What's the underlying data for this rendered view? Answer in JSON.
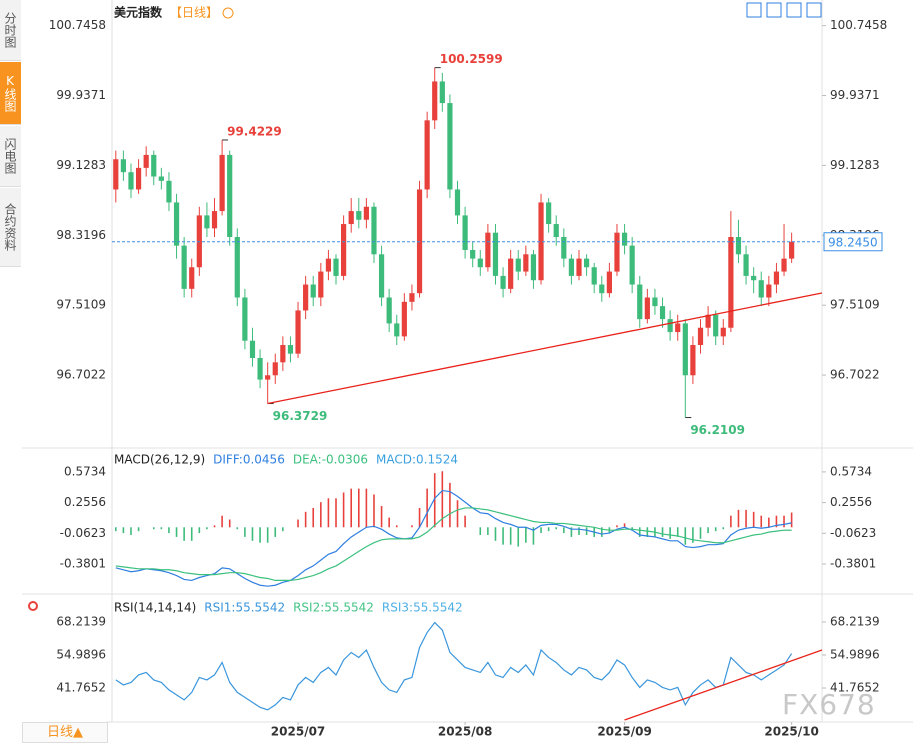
{
  "sidebar": {
    "tabs": [
      "分时图",
      "K线图",
      "闪电图",
      "合约资料"
    ],
    "period_button": "日线▲"
  },
  "watermark": "FX678",
  "chart_data": [
    {
      "type": "candlestick",
      "title": "美元指数",
      "period": "【日线】",
      "up_color": "#e8413c",
      "down_color": "#3dbb7a",
      "xlim": [
        -0.5,
        93
      ],
      "ylim": [
        95.87,
        100.95
      ],
      "xticks": [
        {
          "value": 24,
          "label": "2025/07"
        },
        {
          "value": 46,
          "label": "2025/08"
        },
        {
          "value": 67,
          "label": "2025/09"
        },
        {
          "value": 89,
          "label": "2025/10"
        }
      ],
      "yticks": [
        100.7458,
        99.9371,
        99.1283,
        98.3196,
        97.5109,
        96.7022
      ],
      "current_price": {
        "value": 98.245,
        "label": "98.2450"
      },
      "trendline": {
        "x": [
          20,
          93
        ],
        "y": [
          96.3729,
          97.652
        ],
        "color": "#e8231b"
      },
      "ohlc": [
        [
          98.85,
          99.3,
          98.7,
          99.2
        ],
        [
          99.2,
          99.3,
          98.95,
          99.05
        ],
        [
          99.05,
          99.15,
          98.75,
          98.85
        ],
        [
          98.85,
          99.2,
          98.8,
          99.1
        ],
        [
          99.1,
          99.35,
          99.0,
          99.25
        ],
        [
          99.25,
          99.3,
          98.9,
          99.0
        ],
        [
          99.0,
          99.1,
          98.85,
          98.95
        ],
        [
          98.95,
          99.05,
          98.6,
          98.7
        ],
        [
          98.7,
          98.8,
          98.05,
          98.2
        ],
        [
          98.2,
          98.3,
          97.6,
          97.7
        ],
        [
          97.7,
          98.05,
          97.6,
          97.95
        ],
        [
          97.95,
          98.65,
          97.85,
          98.55
        ],
        [
          98.55,
          98.7,
          98.3,
          98.4
        ],
        [
          98.4,
          98.75,
          98.3,
          98.6
        ],
        [
          98.6,
          99.4229,
          98.55,
          99.25
        ],
        [
          99.25,
          99.3,
          98.2,
          98.3
        ],
        [
          98.3,
          98.4,
          97.5,
          97.6
        ],
        [
          97.6,
          97.7,
          97.0,
          97.1
        ],
        [
          97.1,
          97.25,
          96.8,
          96.9
        ],
        [
          96.9,
          97.0,
          96.55,
          96.65
        ],
        [
          96.65,
          96.85,
          96.3729,
          96.7
        ],
        [
          96.7,
          96.95,
          96.6,
          96.85
        ],
        [
          96.85,
          97.15,
          96.75,
          97.05
        ],
        [
          97.05,
          97.15,
          96.85,
          96.95
        ],
        [
          96.95,
          97.55,
          96.9,
          97.45
        ],
        [
          97.45,
          97.85,
          97.35,
          97.75
        ],
        [
          97.75,
          97.85,
          97.5,
          97.6
        ],
        [
          97.6,
          98.0,
          97.5,
          97.9
        ],
        [
          97.9,
          98.15,
          97.8,
          98.05
        ],
        [
          98.05,
          98.1,
          97.75,
          97.85
        ],
        [
          97.85,
          98.55,
          97.8,
          98.45
        ],
        [
          98.45,
          98.75,
          98.35,
          98.6
        ],
        [
          98.6,
          98.75,
          98.4,
          98.5
        ],
        [
          98.5,
          98.75,
          98.4,
          98.65
        ],
        [
          98.65,
          98.7,
          98.0,
          98.1
        ],
        [
          98.1,
          98.2,
          97.5,
          97.6
        ],
        [
          97.6,
          97.7,
          97.2,
          97.3
        ],
        [
          97.3,
          97.4,
          97.05,
          97.15
        ],
        [
          97.15,
          97.65,
          97.1,
          97.55
        ],
        [
          97.55,
          97.75,
          97.45,
          97.65
        ],
        [
          97.65,
          98.95,
          97.6,
          98.85
        ],
        [
          98.85,
          99.75,
          98.75,
          99.65
        ],
        [
          99.65,
          100.2599,
          99.55,
          100.1
        ],
        [
          100.1,
          100.2,
          99.75,
          99.85
        ],
        [
          99.85,
          99.95,
          98.75,
          98.85
        ],
        [
          98.85,
          98.95,
          98.45,
          98.55
        ],
        [
          98.55,
          98.65,
          98.05,
          98.15
        ],
        [
          98.15,
          98.25,
          97.95,
          98.05
        ],
        [
          98.05,
          98.15,
          97.85,
          97.95
        ],
        [
          97.95,
          98.45,
          97.9,
          98.35
        ],
        [
          98.35,
          98.45,
          97.75,
          97.85
        ],
        [
          97.85,
          97.95,
          97.6,
          97.7
        ],
        [
          97.7,
          98.15,
          97.65,
          98.05
        ],
        [
          98.05,
          98.15,
          97.8,
          97.9
        ],
        [
          97.9,
          98.2,
          97.85,
          98.1
        ],
        [
          98.1,
          98.15,
          97.7,
          97.8
        ],
        [
          97.8,
          98.8,
          97.75,
          98.7
        ],
        [
          98.7,
          98.75,
          98.35,
          98.45
        ],
        [
          98.45,
          98.55,
          98.2,
          98.3
        ],
        [
          98.3,
          98.4,
          97.95,
          98.05
        ],
        [
          98.05,
          98.1,
          97.75,
          97.85
        ],
        [
          97.85,
          98.15,
          97.8,
          98.05
        ],
        [
          98.05,
          98.1,
          97.85,
          97.95
        ],
        [
          97.95,
          98.0,
          97.65,
          97.75
        ],
        [
          97.75,
          97.85,
          97.55,
          97.65
        ],
        [
          97.65,
          98.0,
          97.6,
          97.9
        ],
        [
          97.9,
          98.45,
          97.85,
          98.35
        ],
        [
          98.35,
          98.45,
          98.1,
          98.2
        ],
        [
          98.2,
          98.3,
          97.65,
          97.75
        ],
        [
          97.75,
          97.85,
          97.25,
          97.35
        ],
        [
          97.35,
          97.7,
          97.3,
          97.6
        ],
        [
          97.6,
          97.7,
          97.4,
          97.5
        ],
        [
          97.5,
          97.6,
          97.25,
          97.35
        ],
        [
          97.35,
          97.45,
          97.1,
          97.2
        ],
        [
          97.2,
          97.4,
          97.1,
          97.3
        ],
        [
          97.3,
          97.35,
          96.2109,
          96.7
        ],
        [
          96.7,
          97.15,
          96.6,
          97.05
        ],
        [
          97.05,
          97.35,
          96.95,
          97.25
        ],
        [
          97.25,
          97.5,
          97.15,
          97.4
        ],
        [
          97.4,
          97.45,
          97.05,
          97.15
        ],
        [
          97.15,
          97.35,
          97.05,
          97.25
        ],
        [
          97.25,
          98.6,
          97.2,
          98.3
        ],
        [
          98.3,
          98.5,
          98.0,
          98.1
        ],
        [
          98.1,
          98.2,
          97.75,
          97.85
        ],
        [
          97.85,
          97.95,
          97.65,
          97.8
        ],
        [
          97.8,
          97.9,
          97.5,
          97.6
        ],
        [
          97.6,
          97.85,
          97.5,
          97.75
        ],
        [
          97.75,
          98.0,
          97.65,
          97.9
        ],
        [
          97.9,
          98.45,
          97.85,
          98.05
        ],
        [
          98.05,
          98.35,
          98.0,
          98.245
        ]
      ]
    },
    {
      "type": "macd",
      "title": "MACD(26,12,9)",
      "ylim": [
        -0.67,
        0.8
      ],
      "yticks": [
        0.5734,
        0.2556,
        -0.0623,
        -0.3801
      ],
      "xlim": [
        -0.5,
        93
      ],
      "series": [
        {
          "name": "DIFF:0.0456",
          "color": "#2f7fe0",
          "kind": "line",
          "values": [
            -0.42,
            -0.44,
            -0.46,
            -0.45,
            -0.43,
            -0.44,
            -0.45,
            -0.47,
            -0.5,
            -0.54,
            -0.55,
            -0.52,
            -0.5,
            -0.48,
            -0.42,
            -0.43,
            -0.48,
            -0.53,
            -0.57,
            -0.6,
            -0.61,
            -0.6,
            -0.57,
            -0.55,
            -0.5,
            -0.44,
            -0.4,
            -0.34,
            -0.28,
            -0.25,
            -0.17,
            -0.1,
            -0.05,
            0.0,
            0.01,
            -0.02,
            -0.07,
            -0.11,
            -0.12,
            -0.11,
            0.0,
            0.15,
            0.3,
            0.38,
            0.37,
            0.32,
            0.26,
            0.2,
            0.15,
            0.14,
            0.09,
            0.05,
            0.03,
            0.0,
            0.0,
            -0.03,
            0.02,
            0.03,
            0.03,
            0.01,
            -0.02,
            -0.02,
            -0.03,
            -0.05,
            -0.07,
            -0.06,
            -0.02,
            0.0,
            -0.03,
            -0.08,
            -0.09,
            -0.1,
            -0.12,
            -0.14,
            -0.14,
            -0.2,
            -0.21,
            -0.2,
            -0.18,
            -0.18,
            -0.17,
            -0.08,
            -0.03,
            -0.01,
            0.0,
            -0.01,
            0.0,
            0.02,
            0.03,
            0.0456
          ]
        },
        {
          "name": "DEA:-0.0306",
          "color": "#3cc07e",
          "kind": "line",
          "values": [
            -0.4,
            -0.41,
            -0.42,
            -0.43,
            -0.43,
            -0.43,
            -0.44,
            -0.44,
            -0.45,
            -0.47,
            -0.48,
            -0.49,
            -0.49,
            -0.49,
            -0.48,
            -0.47,
            -0.47,
            -0.48,
            -0.5,
            -0.52,
            -0.53,
            -0.55,
            -0.55,
            -0.55,
            -0.54,
            -0.52,
            -0.5,
            -0.47,
            -0.43,
            -0.4,
            -0.35,
            -0.3,
            -0.25,
            -0.2,
            -0.16,
            -0.13,
            -0.12,
            -0.12,
            -0.12,
            -0.12,
            -0.1,
            -0.05,
            0.02,
            0.09,
            0.14,
            0.18,
            0.2,
            0.2,
            0.19,
            0.18,
            0.16,
            0.14,
            0.12,
            0.1,
            0.08,
            0.06,
            0.05,
            0.05,
            0.04,
            0.04,
            0.03,
            0.02,
            0.01,
            0.0,
            -0.02,
            -0.03,
            -0.03,
            -0.02,
            -0.02,
            -0.03,
            -0.04,
            -0.05,
            -0.07,
            -0.08,
            -0.09,
            -0.11,
            -0.13,
            -0.14,
            -0.15,
            -0.16,
            -0.16,
            -0.14,
            -0.12,
            -0.1,
            -0.08,
            -0.07,
            -0.05,
            -0.04,
            -0.03,
            -0.0306
          ]
        },
        {
          "name": "MACD:0.1524",
          "color": "#3aa0e0",
          "kind": "hist",
          "up_color": "#e8413c",
          "down_color": "#3dbb7a",
          "values": [
            -0.04,
            -0.06,
            -0.08,
            -0.04,
            0.0,
            -0.02,
            -0.02,
            -0.06,
            -0.1,
            -0.14,
            -0.14,
            -0.06,
            -0.02,
            0.02,
            0.12,
            0.08,
            -0.02,
            -0.1,
            -0.14,
            -0.16,
            -0.16,
            -0.1,
            -0.04,
            0.0,
            0.08,
            0.16,
            0.2,
            0.26,
            0.3,
            0.3,
            0.36,
            0.4,
            0.4,
            0.4,
            0.34,
            0.22,
            0.1,
            0.02,
            0.0,
            0.02,
            0.2,
            0.4,
            0.56,
            0.58,
            0.46,
            0.28,
            0.12,
            0.0,
            -0.08,
            -0.08,
            -0.14,
            -0.18,
            -0.18,
            -0.2,
            -0.16,
            -0.18,
            -0.06,
            -0.04,
            -0.02,
            -0.06,
            -0.1,
            -0.08,
            -0.08,
            -0.1,
            -0.1,
            -0.06,
            0.02,
            0.04,
            -0.02,
            -0.1,
            -0.1,
            -0.1,
            -0.1,
            -0.12,
            -0.1,
            -0.18,
            -0.16,
            -0.12,
            -0.06,
            -0.04,
            -0.02,
            0.12,
            0.18,
            0.18,
            0.16,
            0.12,
            0.1,
            0.12,
            0.12,
            0.1524
          ]
        }
      ]
    },
    {
      "type": "rsi",
      "title": "RSI(14,14,14)",
      "ylim": [
        28.14,
        77.83
      ],
      "yticks": [
        68.2139,
        54.9896,
        41.7652
      ],
      "xlim": [
        -0.5,
        93
      ],
      "series": [
        {
          "name": "RSI1:55.5542",
          "color": "#3a96dc"
        },
        {
          "name": "RSI2:55.5542",
          "color": "#45c487"
        },
        {
          "name": "RSI3:55.5542",
          "color": "#4fb0e6"
        }
      ],
      "values": [
        45,
        43,
        44,
        47,
        48,
        45,
        44,
        41,
        39,
        37,
        40,
        46,
        45,
        47,
        52,
        44,
        40,
        38,
        36,
        34,
        33,
        35,
        38,
        37,
        43,
        46,
        44,
        48,
        50,
        47,
        53,
        56,
        54,
        57,
        50,
        44,
        41,
        40,
        45,
        46,
        58,
        64,
        68,
        65,
        56,
        53,
        50,
        49,
        48,
        52,
        47,
        46,
        50,
        48,
        51,
        47,
        57,
        54,
        52,
        49,
        47,
        50,
        49,
        46,
        45,
        48,
        53,
        51,
        46,
        42,
        45,
        44,
        42,
        41,
        42,
        35,
        40,
        43,
        45,
        42,
        43,
        54,
        51,
        48,
        47,
        45,
        47,
        49,
        51,
        55.5542
      ],
      "trendline": {
        "x": [
          67,
          93
        ],
        "y": [
          28.94,
          57.0
        ],
        "color": "#e8231b"
      }
    }
  ]
}
